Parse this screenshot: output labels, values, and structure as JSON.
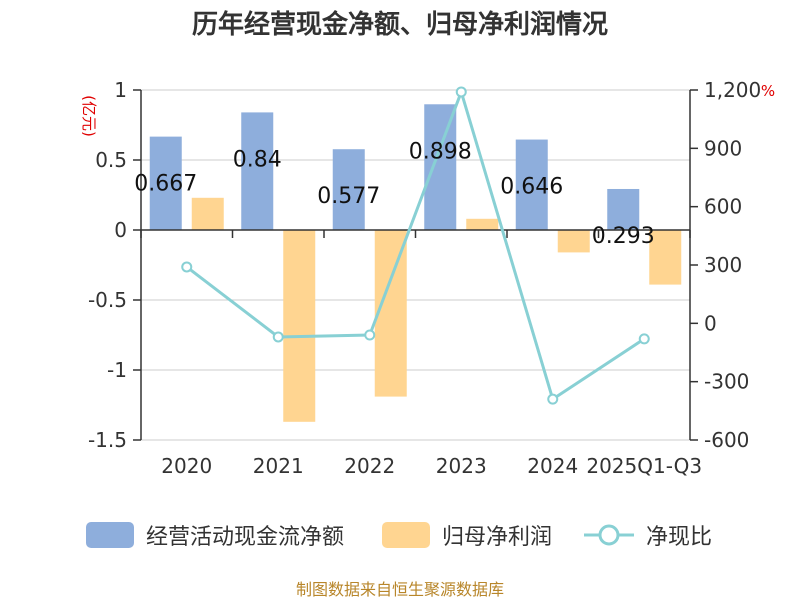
{
  "chart_data": {
    "type": "bar",
    "title": "历年经营现金净额、归母净利润情况",
    "categories": [
      "2020",
      "2021",
      "2022",
      "2023",
      "2024",
      "2025Q1-Q3"
    ],
    "y_left": {
      "unit": "(亿元)",
      "ylim": [
        -1.5,
        1
      ],
      "ticks": [
        "1",
        "0.5",
        "0",
        "-0.5",
        "-1",
        "-1.5"
      ],
      "tick_values": [
        1,
        0.5,
        0,
        -0.5,
        -1,
        -1.5
      ]
    },
    "y_right": {
      "unit": "%",
      "ylim": [
        -600,
        1200
      ],
      "ticks": [
        "1,200",
        "900",
        "600",
        "300",
        "0",
        "-300",
        "-600"
      ],
      "tick_values": [
        1200,
        900,
        600,
        300,
        0,
        -300,
        -600
      ]
    },
    "series": [
      {
        "name": "经营活动现金流净额",
        "type": "bar",
        "axis": "left",
        "color": "#8eaedc",
        "values": [
          0.667,
          0.84,
          0.577,
          0.898,
          0.646,
          0.293
        ],
        "labels": [
          "0.667",
          "0.84",
          "0.577",
          "0.898",
          "0.646",
          "0.293"
        ]
      },
      {
        "name": "归母净利润",
        "type": "bar",
        "axis": "left",
        "color": "#ffd591",
        "values": [
          0.23,
          -1.37,
          -1.19,
          0.08,
          -0.16,
          -0.39
        ]
      },
      {
        "name": "净现比",
        "type": "line",
        "axis": "right",
        "color": "#88d0d4",
        "values": [
          290,
          -70,
          -60,
          1190,
          -390,
          -80
        ]
      }
    ],
    "grid": true,
    "legend_position": "bottom"
  },
  "source_text": "制图数据来自恒生聚源数据库"
}
